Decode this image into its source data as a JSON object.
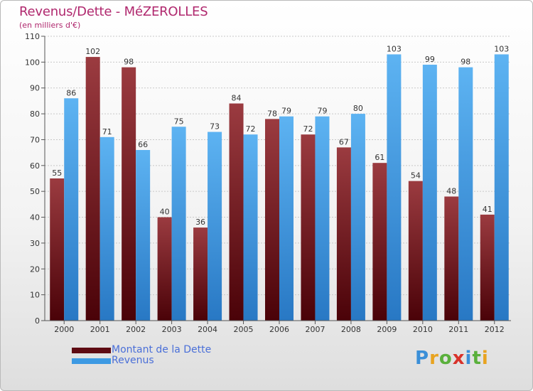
{
  "title": "Revenus/Dette - MéZEROLLES",
  "subtitle": "(en milliers d'€)",
  "chart_data": {
    "type": "bar",
    "categories": [
      "2000",
      "2001",
      "2002",
      "2003",
      "2004",
      "2005",
      "2006",
      "2007",
      "2008",
      "2009",
      "2010",
      "2011",
      "2012"
    ],
    "series": [
      {
        "name": "Montant de la Dette",
        "values": [
          55,
          102,
          98,
          40,
          36,
          84,
          78,
          72,
          67,
          61,
          54,
          48,
          41
        ],
        "color": "#8b1e2a"
      },
      {
        "name": "Revenus",
        "values": [
          86,
          71,
          66,
          75,
          73,
          72,
          79,
          79,
          80,
          103,
          99,
          98,
          103
        ],
        "color": "#3d9ae3"
      }
    ],
    "ylim": [
      0,
      110
    ],
    "yticks": [
      0,
      10,
      20,
      30,
      40,
      50,
      60,
      70,
      80,
      90,
      100,
      110
    ],
    "grid": true,
    "legend_position": "bottom-left"
  },
  "legend": {
    "items": [
      {
        "label": "Montant de la Dette",
        "color": "#5e0a12"
      },
      {
        "label": "Revenus",
        "color": "#3d9ae3"
      }
    ]
  },
  "logo": {
    "letters": [
      "P",
      "r",
      "o",
      "x",
      "i",
      "t",
      "i"
    ],
    "colors": [
      "#3a8fd8",
      "#e8a320",
      "#5ab03c",
      "#d8322a",
      "#3a8fd8",
      "#5ab03c",
      "#e8a320"
    ]
  }
}
